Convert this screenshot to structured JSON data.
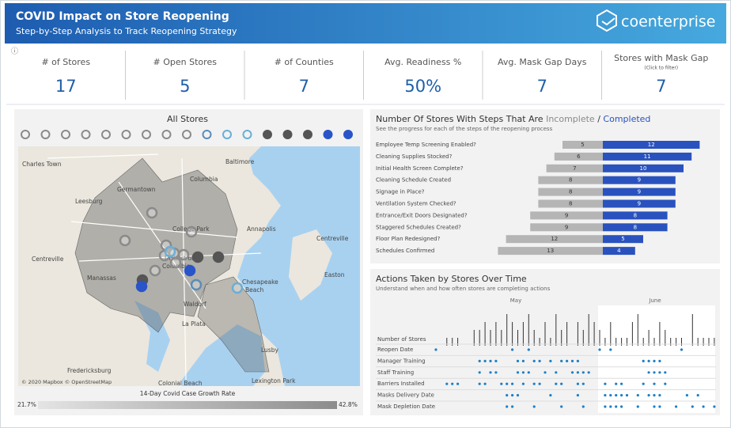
{
  "header": {
    "title": "COVID Impact on Store Reopening",
    "subtitle": "Step-by-Step Analysis to Track Reopening Strategy",
    "logo": "coenterprise"
  },
  "kpis": [
    {
      "label": "# of Stores",
      "value": 17
    },
    {
      "label": "# Open Stores",
      "value": 5
    },
    {
      "label": "# of Counties",
      "value": 7
    },
    {
      "label": "Avg. Readiness %",
      "value": "50%"
    },
    {
      "label": "Avg. Mask Gap Days",
      "value": 7
    },
    {
      "label": "Stores with Mask Gap",
      "note": "(Click to filter)",
      "value": 7
    }
  ],
  "map_panel": {
    "title": "All Stores",
    "stores": [
      {
        "color": "#8a8a8a",
        "filled": false
      },
      {
        "color": "#8a8a8a",
        "filled": false
      },
      {
        "color": "#8a8a8a",
        "filled": false
      },
      {
        "color": "#8a8a8a",
        "filled": false
      },
      {
        "color": "#8a8a8a",
        "filled": false
      },
      {
        "color": "#8a8a8a",
        "filled": false
      },
      {
        "color": "#8a8a8a",
        "filled": false
      },
      {
        "color": "#8a8a8a",
        "filled": false
      },
      {
        "color": "#8a8a8a",
        "filled": false
      },
      {
        "color": "#5b8db8",
        "filled": false
      },
      {
        "color": "#6aaed6",
        "filled": false
      },
      {
        "color": "#6aaed6",
        "filled": false
      },
      {
        "color": "#555555",
        "filled": true
      },
      {
        "color": "#555555",
        "filled": true
      },
      {
        "color": "#555555",
        "filled": true
      },
      {
        "color": "#2a55c8",
        "filled": true
      },
      {
        "color": "#2a55c8",
        "filled": true
      }
    ],
    "places": [
      "Charles Town",
      "Baltimore",
      "Germantown",
      "Columbia",
      "Leesburg",
      "College Park",
      "Annapolis",
      "Centreville",
      "Centreville",
      "Manassas",
      "District of",
      "Columbia",
      "Easton",
      "Chesapeake",
      "Beach",
      "Waldorf",
      "La Plata",
      "Fredericksburg",
      "Colonial Beach",
      "Lusby",
      "Lexington Park"
    ],
    "attribution": "© 2020 Mapbox © OpenStreetMap",
    "legend": {
      "title": "14-Day Covid Case Growth Rate",
      "min_label": "21.7%",
      "max_label": "42.8%"
    }
  },
  "chart_data": [
    {
      "type": "diverging-bar",
      "title": "Number Of Stores With Steps That Are",
      "separator": "/",
      "subtitle": "See the progress for each of the steps of the reopening process",
      "categories": [
        "Employee Temp Screening Enabled?",
        "Cleaning Supplies Stocked?",
        "Initial Health Screen Complete?",
        "Cleaning Schedule Created",
        "Signage in Place?",
        "Ventilation System Checked?",
        "Entrance/Exit Doors Designated?",
        "Staggered Schedules Created?",
        "Floor Plan Redesigned?",
        "Schedules Confirmed"
      ],
      "series": [
        {
          "name": "Incomplete",
          "color": "#b5b5b5",
          "values": [
            5,
            6,
            7,
            8,
            8,
            8,
            9,
            9,
            12,
            13
          ]
        },
        {
          "name": "Completed",
          "color": "#2a52be",
          "values": [
            12,
            11,
            10,
            9,
            9,
            9,
            8,
            8,
            5,
            4
          ]
        }
      ]
    },
    {
      "type": "timeline",
      "title": "Actions Taken by Stores Over Time",
      "subtitle": "Understand when and how often stores are completing actions",
      "months": [
        "May",
        "June"
      ],
      "color": "#1f7fc4",
      "bar_row": {
        "name": "Number of Stores",
        "values": [
          0,
          0,
          1,
          1,
          1,
          0,
          0,
          2,
          2,
          3,
          2,
          3,
          2,
          4,
          3,
          2,
          3,
          4,
          2,
          1,
          3,
          1,
          4,
          2,
          3,
          0,
          3,
          2,
          4,
          3,
          2,
          1,
          3,
          1,
          1,
          1,
          3,
          4,
          1,
          2,
          1,
          3,
          2,
          1,
          1,
          1,
          0,
          4,
          1,
          1,
          1,
          1
        ]
      },
      "dot_rows": [
        {
          "name": "Reopen Date",
          "days": [
            0,
            14,
            17,
            30,
            32,
            45
          ]
        },
        {
          "name": "Manager Training",
          "days": [
            8,
            9,
            10,
            11,
            15,
            16,
            18,
            19,
            21,
            23,
            24,
            25,
            26,
            38,
            39,
            40,
            41
          ]
        },
        {
          "name": "Staff Training",
          "days": [
            8,
            10,
            11,
            15,
            16,
            17,
            20,
            22,
            25,
            26,
            27,
            28,
            39,
            40,
            41,
            42
          ]
        },
        {
          "name": "Barriers Installed",
          "days": [
            2,
            3,
            4,
            8,
            9,
            12,
            13,
            14,
            16,
            18,
            19,
            22,
            23,
            26,
            27,
            31,
            33,
            34,
            38,
            40,
            42
          ]
        },
        {
          "name": "Masks Delivery Date",
          "days": [
            13,
            14,
            15,
            21,
            26,
            31,
            32,
            33,
            34,
            35,
            37,
            39,
            40,
            41,
            46,
            48
          ]
        },
        {
          "name": "Mask Depletion Date",
          "days": [
            13,
            14,
            18,
            23,
            27,
            31,
            32,
            33,
            34,
            37,
            40,
            41,
            44,
            47,
            49,
            51
          ]
        }
      ]
    }
  ]
}
